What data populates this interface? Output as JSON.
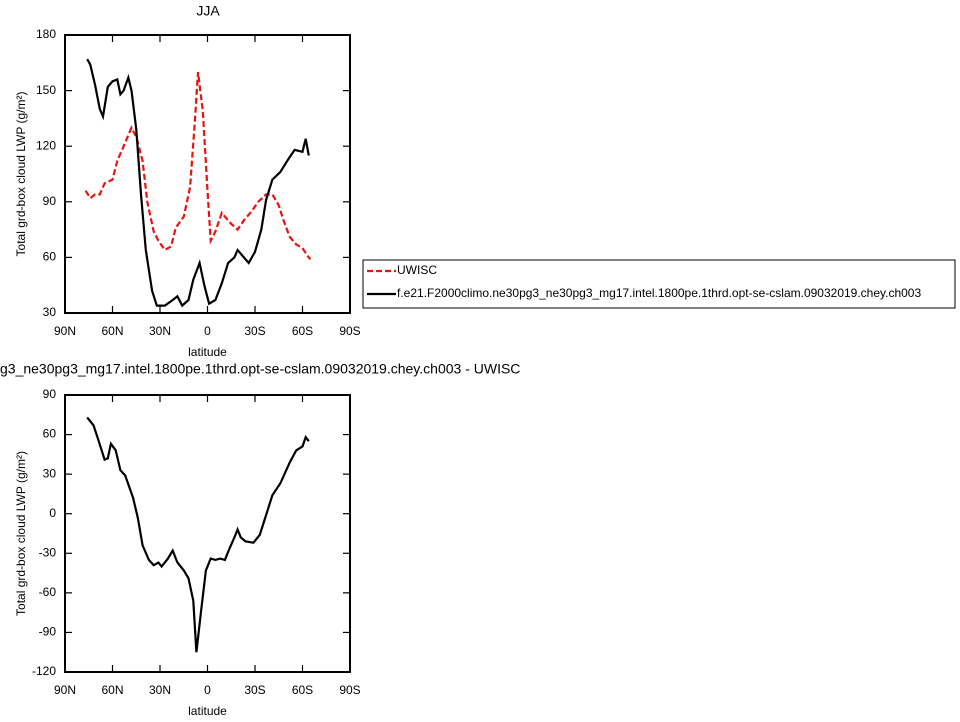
{
  "chart_data": [
    {
      "type": "line",
      "title": "JJA",
      "x_label": "latitude",
      "y_label": "Total grd-box cloud LWP (g/m²)",
      "xlim": [
        90,
        -90
      ],
      "xticks": [
        {
          "value": 90,
          "label": "90N"
        },
        {
          "value": 60,
          "label": "60N"
        },
        {
          "value": 30,
          "label": "30N"
        },
        {
          "value": 0,
          "label": "0"
        },
        {
          "value": -30,
          "label": "30S"
        },
        {
          "value": -60,
          "label": "60S"
        },
        {
          "value": -90,
          "label": "90S"
        }
      ],
      "ylim": [
        30,
        180
      ],
      "yticks": [
        30,
        60,
        90,
        120,
        150,
        180
      ],
      "legend": "outside-right",
      "series": [
        {
          "name": "UWISC",
          "color": "#e8120f",
          "line_style": "dashed",
          "x": [
            77,
            74,
            71,
            68,
            65,
            60,
            57,
            52,
            48,
            45,
            41,
            38,
            34,
            31,
            27,
            23,
            20,
            15,
            11,
            8,
            6,
            3,
            0,
            -2,
            -5,
            -9,
            -12,
            -15,
            -19,
            -23,
            -28,
            -32,
            -37,
            -41,
            -45,
            -48,
            -52,
            -56,
            -60,
            -63,
            -65
          ],
          "values": [
            96,
            92,
            94,
            94,
            100,
            102,
            112,
            122,
            130,
            125,
            112,
            90,
            74,
            69,
            64,
            66,
            76,
            82,
            98,
            133,
            160,
            139,
            96,
            69,
            74,
            84,
            81,
            78,
            75,
            80,
            85,
            90,
            94,
            94,
            88,
            80,
            71,
            67,
            65,
            61,
            59
          ]
        },
        {
          "name": "f.e21.F2000climo.ne30pg3_ne30pg3_mg17.intel.1800pe.1thrd.opt-se-cslam.09032019.chey.ch003",
          "color": "#000000",
          "line_style": "solid",
          "x": [
            76,
            74,
            71,
            68,
            66,
            63,
            60,
            57,
            55,
            53,
            50,
            48,
            45,
            42,
            39,
            35,
            32,
            27,
            22,
            19,
            16,
            12,
            9,
            5,
            2,
            -1,
            -5,
            -9,
            -13,
            -17,
            -19,
            -22,
            -26,
            -30,
            -34,
            -37,
            -41,
            -46,
            -51,
            -55,
            -60,
            -62,
            -64
          ],
          "values": [
            167,
            164,
            153,
            140,
            136,
            152,
            155,
            156,
            148,
            150,
            157,
            150,
            129,
            94,
            64,
            42,
            34,
            34,
            37,
            39,
            34,
            37,
            48,
            57,
            45,
            35,
            37,
            46,
            57,
            60,
            64,
            61,
            57,
            63,
            75,
            91,
            102,
            106,
            113,
            118,
            117,
            124,
            115
          ]
        }
      ]
    },
    {
      "type": "line",
      "title": "g3_ne30pg3_mg17.intel.1800pe.1thrd.opt-se-cslam.09032019.chey.ch003 - UWISC",
      "x_label": "latitude",
      "y_label": "Total grd-box cloud LWP (g/m²)",
      "xlim": [
        90,
        -90
      ],
      "xticks": [
        {
          "value": 90,
          "label": "90N"
        },
        {
          "value": 60,
          "label": "60N"
        },
        {
          "value": 30,
          "label": "30N"
        },
        {
          "value": 0,
          "label": "0"
        },
        {
          "value": -30,
          "label": "30S"
        },
        {
          "value": -60,
          "label": "60S"
        },
        {
          "value": -90,
          "label": "90S"
        }
      ],
      "ylim": [
        -120,
        90
      ],
      "yticks": [
        -120,
        -90,
        -60,
        -30,
        0,
        30,
        60,
        90
      ],
      "series": [
        {
          "color": "#000000",
          "line_style": "solid",
          "x": [
            76,
            72,
            69,
            65,
            63,
            61,
            58,
            55,
            52,
            49,
            47,
            44,
            41,
            37,
            34,
            31,
            29,
            25,
            22,
            19,
            15,
            12,
            9,
            7,
            4,
            1,
            -2,
            -5,
            -8,
            -11,
            -14,
            -17,
            -19,
            -21,
            -24,
            -29,
            -33,
            -37,
            -41,
            -46,
            -52,
            -56,
            -60,
            -62,
            -64
          ],
          "values": [
            73,
            67,
            56,
            41,
            42,
            53,
            48,
            33,
            29,
            19,
            12,
            -3,
            -24,
            -35,
            -39,
            -37,
            -40,
            -34,
            -28,
            -37,
            -43,
            -49,
            -66,
            -105,
            -73,
            -43,
            -34,
            -35,
            -34,
            -35,
            -26,
            -18,
            -12,
            -18,
            -21,
            -22,
            -16,
            -1,
            14,
            23,
            39,
            48,
            51,
            58,
            55
          ]
        }
      ]
    }
  ]
}
